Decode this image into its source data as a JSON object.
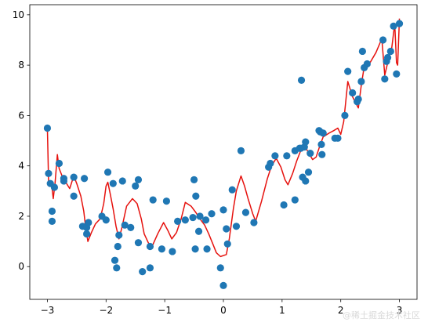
{
  "chart_data": {
    "type": "scatter",
    "x_ticks": [
      -3,
      -2,
      -1,
      0,
      1,
      2,
      3
    ],
    "y_ticks": [
      0,
      2,
      4,
      6,
      8,
      10
    ],
    "xlim": [
      -3.3,
      3.3
    ],
    "ylim": [
      -1.3,
      10.4
    ],
    "grid": false,
    "series": [
      {
        "kind": "scatter",
        "color": "#1f77b4",
        "points": [
          [
            -3.0,
            5.5
          ],
          [
            -2.98,
            3.7
          ],
          [
            -2.95,
            3.3
          ],
          [
            -2.92,
            2.2
          ],
          [
            -2.92,
            1.8
          ],
          [
            -2.88,
            3.15
          ],
          [
            -2.8,
            4.1
          ],
          [
            -2.72,
            3.5
          ],
          [
            -2.72,
            3.4
          ],
          [
            -2.55,
            2.8
          ],
          [
            -2.55,
            3.55
          ],
          [
            -2.4,
            1.6
          ],
          [
            -2.37,
            3.5
          ],
          [
            -2.33,
            1.55
          ],
          [
            -2.33,
            1.3
          ],
          [
            -2.3,
            1.75
          ],
          [
            -2.07,
            2.0
          ],
          [
            -2.0,
            1.85
          ],
          [
            -1.97,
            3.75
          ],
          [
            -1.88,
            3.3
          ],
          [
            -1.85,
            0.25
          ],
          [
            -1.82,
            -0.05
          ],
          [
            -1.8,
            0.8
          ],
          [
            -1.78,
            1.25
          ],
          [
            -1.72,
            3.4
          ],
          [
            -1.68,
            1.65
          ],
          [
            -1.58,
            1.55
          ],
          [
            -1.5,
            3.2
          ],
          [
            -1.45,
            3.45
          ],
          [
            -1.45,
            0.95
          ],
          [
            -1.38,
            -0.2
          ],
          [
            -1.25,
            -0.05
          ],
          [
            -1.25,
            0.8
          ],
          [
            -1.2,
            2.65
          ],
          [
            -1.05,
            0.7
          ],
          [
            -0.97,
            2.6
          ],
          [
            -0.87,
            0.6
          ],
          [
            -0.78,
            1.8
          ],
          [
            -0.65,
            1.85
          ],
          [
            -0.52,
            1.95
          ],
          [
            -0.5,
            3.45
          ],
          [
            -0.48,
            0.7
          ],
          [
            -0.47,
            2.8
          ],
          [
            -0.42,
            1.4
          ],
          [
            -0.4,
            2.0
          ],
          [
            -0.3,
            1.85
          ],
          [
            -0.28,
            0.7
          ],
          [
            -0.2,
            2.1
          ],
          [
            -0.05,
            -0.05
          ],
          [
            0.0,
            2.25
          ],
          [
            0.0,
            -0.75
          ],
          [
            0.05,
            1.5
          ],
          [
            0.07,
            0.9
          ],
          [
            0.15,
            3.05
          ],
          [
            0.22,
            1.6
          ],
          [
            0.3,
            4.6
          ],
          [
            0.38,
            2.15
          ],
          [
            0.52,
            1.75
          ],
          [
            0.77,
            3.95
          ],
          [
            0.8,
            4.1
          ],
          [
            0.88,
            4.4
          ],
          [
            1.03,
            2.45
          ],
          [
            1.08,
            4.4
          ],
          [
            1.22,
            4.6
          ],
          [
            1.22,
            2.65
          ],
          [
            1.3,
            4.7
          ],
          [
            1.32,
            4.7
          ],
          [
            1.33,
            7.4
          ],
          [
            1.35,
            3.55
          ],
          [
            1.38,
            4.75
          ],
          [
            1.4,
            3.4
          ],
          [
            1.4,
            4.95
          ],
          [
            1.45,
            3.75
          ],
          [
            1.48,
            4.5
          ],
          [
            1.63,
            5.4
          ],
          [
            1.65,
            5.35
          ],
          [
            1.67,
            4.85
          ],
          [
            1.68,
            4.45
          ],
          [
            1.7,
            5.3
          ],
          [
            1.9,
            5.1
          ],
          [
            1.95,
            5.1
          ],
          [
            2.07,
            6.0
          ],
          [
            2.12,
            7.75
          ],
          [
            2.2,
            6.9
          ],
          [
            2.28,
            6.55
          ],
          [
            2.3,
            6.65
          ],
          [
            2.35,
            7.35
          ],
          [
            2.37,
            8.55
          ],
          [
            2.4,
            7.9
          ],
          [
            2.45,
            8.05
          ],
          [
            2.72,
            9.0
          ],
          [
            2.75,
            7.45
          ],
          [
            2.78,
            8.15
          ],
          [
            2.8,
            8.3
          ],
          [
            2.85,
            8.55
          ],
          [
            2.9,
            9.55
          ],
          [
            2.95,
            7.65
          ],
          [
            3.0,
            9.65
          ]
        ]
      },
      {
        "kind": "line",
        "color": "#e6120e",
        "points": [
          [
            -3.0,
            5.5
          ],
          [
            -2.98,
            3.4
          ],
          [
            -2.93,
            3.3
          ],
          [
            -2.9,
            2.7
          ],
          [
            -2.87,
            3.3
          ],
          [
            -2.83,
            4.45
          ],
          [
            -2.8,
            3.9
          ],
          [
            -2.75,
            3.6
          ],
          [
            -2.7,
            3.4
          ],
          [
            -2.62,
            3.1
          ],
          [
            -2.55,
            3.6
          ],
          [
            -2.5,
            3.3
          ],
          [
            -2.43,
            2.8
          ],
          [
            -2.38,
            2.2
          ],
          [
            -2.35,
            1.6
          ],
          [
            -2.31,
            1.0
          ],
          [
            -2.25,
            1.35
          ],
          [
            -2.18,
            1.7
          ],
          [
            -2.1,
            1.9
          ],
          [
            -2.04,
            2.5
          ],
          [
            -2.0,
            3.2
          ],
          [
            -1.97,
            3.35
          ],
          [
            -1.93,
            2.9
          ],
          [
            -1.88,
            2.3
          ],
          [
            -1.83,
            1.6
          ],
          [
            -1.78,
            1.1
          ],
          [
            -1.73,
            1.55
          ],
          [
            -1.65,
            2.4
          ],
          [
            -1.55,
            2.7
          ],
          [
            -1.47,
            2.5
          ],
          [
            -1.4,
            1.9
          ],
          [
            -1.35,
            1.3
          ],
          [
            -1.28,
            0.95
          ],
          [
            -1.22,
            0.78
          ],
          [
            -1.12,
            1.3
          ],
          [
            -1.02,
            1.75
          ],
          [
            -0.95,
            1.45
          ],
          [
            -0.88,
            1.1
          ],
          [
            -0.8,
            1.35
          ],
          [
            -0.72,
            1.9
          ],
          [
            -0.65,
            2.55
          ],
          [
            -0.55,
            2.4
          ],
          [
            -0.47,
            2.15
          ],
          [
            -0.4,
            1.9
          ],
          [
            -0.32,
            1.65
          ],
          [
            -0.25,
            1.3
          ],
          [
            -0.18,
            0.9
          ],
          [
            -0.12,
            0.55
          ],
          [
            -0.05,
            0.4
          ],
          [
            0.05,
            0.48
          ],
          [
            0.1,
            1.1
          ],
          [
            0.17,
            2.3
          ],
          [
            0.22,
            3.0
          ],
          [
            0.3,
            3.6
          ],
          [
            0.36,
            3.2
          ],
          [
            0.42,
            2.7
          ],
          [
            0.5,
            2.1
          ],
          [
            0.55,
            1.8
          ],
          [
            0.65,
            2.6
          ],
          [
            0.75,
            3.5
          ],
          [
            0.82,
            4.0
          ],
          [
            0.9,
            4.3
          ],
          [
            0.98,
            3.95
          ],
          [
            1.05,
            3.45
          ],
          [
            1.1,
            3.25
          ],
          [
            1.18,
            3.7
          ],
          [
            1.25,
            4.2
          ],
          [
            1.3,
            4.5
          ],
          [
            1.35,
            4.8
          ],
          [
            1.42,
            4.65
          ],
          [
            1.52,
            4.25
          ],
          [
            1.58,
            4.35
          ],
          [
            1.63,
            4.7
          ],
          [
            1.7,
            5.15
          ],
          [
            1.8,
            5.3
          ],
          [
            1.88,
            5.4
          ],
          [
            1.95,
            5.5
          ],
          [
            2.0,
            5.25
          ],
          [
            2.05,
            5.75
          ],
          [
            2.12,
            7.35
          ],
          [
            2.2,
            6.75
          ],
          [
            2.3,
            6.3
          ],
          [
            2.35,
            7.2
          ],
          [
            2.4,
            7.95
          ],
          [
            2.5,
            8.1
          ],
          [
            2.6,
            8.5
          ],
          [
            2.7,
            9.05
          ],
          [
            2.75,
            7.6
          ],
          [
            2.8,
            8.1
          ],
          [
            2.87,
            8.7
          ],
          [
            2.92,
            9.65
          ],
          [
            2.95,
            8.1
          ],
          [
            2.97,
            8.0
          ],
          [
            3.0,
            9.85
          ]
        ]
      }
    ]
  },
  "watermark": "@稀土掘金技术社区"
}
